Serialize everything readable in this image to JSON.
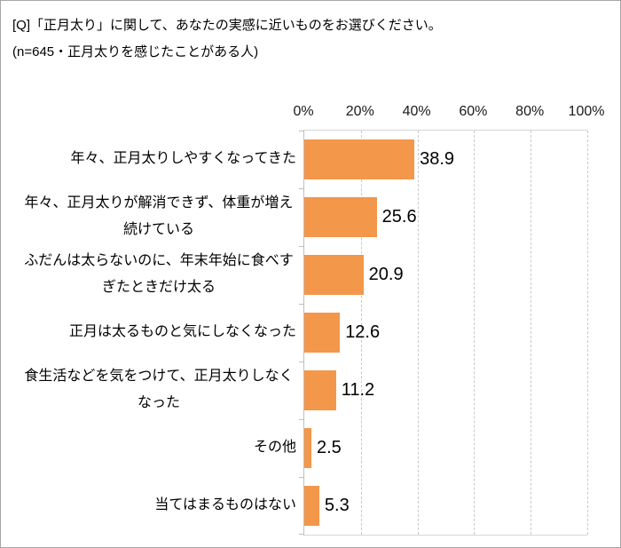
{
  "header": {
    "title_line1": "[Q]「正月太り」に関して、あなたの実感に近いものをお選びください。",
    "title_line2": "(n=645・正月太りを感じたことがある人)"
  },
  "chart_data": {
    "type": "bar",
    "orientation": "horizontal",
    "title": "[Q]「正月太り」に関して、あなたの実感に近いものをお選びください。(n=645・正月太りを感じたことがある人)",
    "categories": [
      "年々、正月太りしやすくなってきた",
      "年々、正月太りが解消できず、体重が増え続けている",
      "ふだんは太らないのに、年末年始に食べすぎたときだけ太る",
      "正月は太るものと気にしなくなった",
      "食生活などを気をつけて、正月太りしなくなった",
      "その他",
      "当てはまるものはない"
    ],
    "values": [
      38.9,
      25.6,
      20.9,
      12.6,
      11.2,
      2.5,
      5.3
    ],
    "value_labels": [
      "38.9",
      "25.6",
      "20.9",
      "12.6",
      "11.2",
      "2.5",
      "5.3"
    ],
    "xlabel": "",
    "ylabel": "",
    "xlim": [
      0,
      100
    ],
    "x_ticks": [
      0,
      20,
      40,
      60,
      80,
      100
    ],
    "x_tick_labels": [
      "0%",
      "20%",
      "40%",
      "60%",
      "80%",
      "100%"
    ],
    "grid": true,
    "gridline_style": "dashed",
    "legend": false
  },
  "colors": {
    "bar": "#f3974b",
    "gridline": "#c9c9c9",
    "axis": "#bfbfbf",
    "plot_border": "#d6d6d6",
    "frame_border": "#a6a6a6",
    "text": "#000000"
  }
}
